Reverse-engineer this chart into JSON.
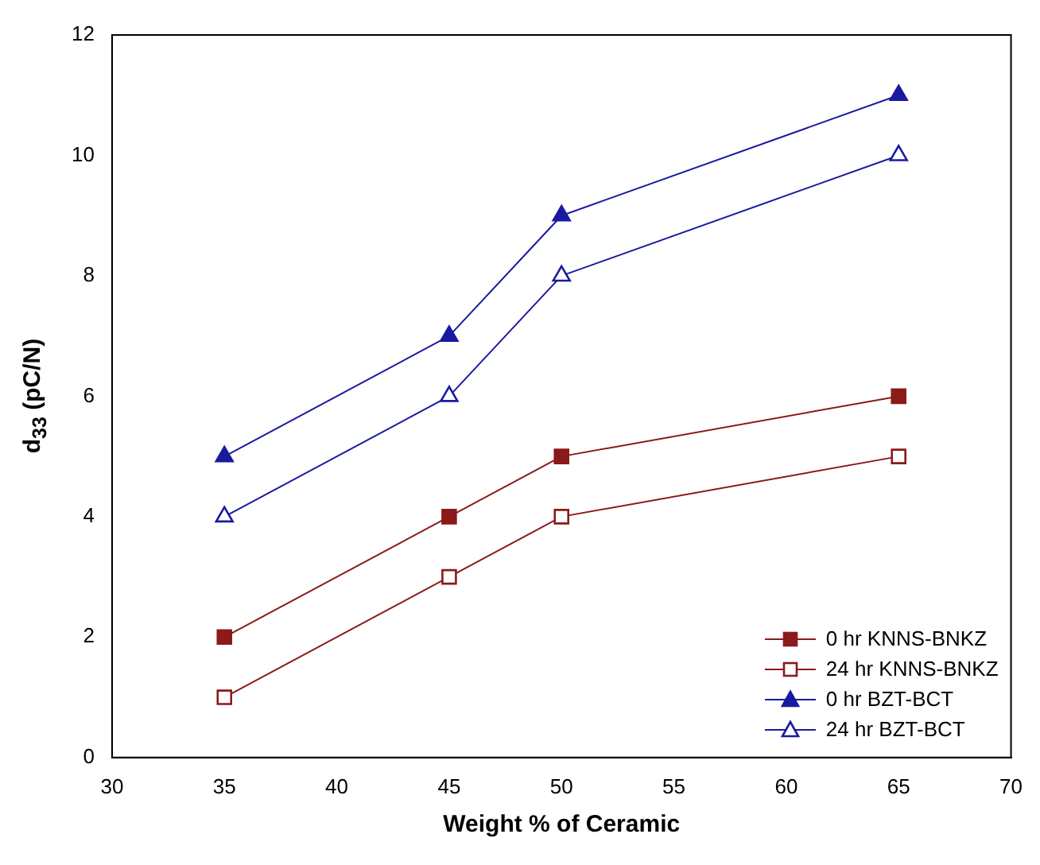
{
  "chart_data": {
    "type": "line",
    "xlabel": "Weight % of Ceramic",
    "ylabel": "d$_{33}$ (pC/N)",
    "x": [
      35,
      45,
      50,
      65
    ],
    "series": [
      {
        "name": "0 hr KNNS-BNKZ",
        "color": "#8b1a1a",
        "marker": "square",
        "values": [
          2,
          4,
          5,
          6
        ]
      },
      {
        "name": "24 hr KNNS-BNKZ",
        "color": "#8b1a1a",
        "marker": "square",
        "values": [
          1,
          3,
          4,
          5
        ]
      },
      {
        "name": "0 hr BZT-BCT",
        "color": "#1a1aa0",
        "marker": "triangle",
        "values": [
          5,
          7,
          9,
          11
        ]
      },
      {
        "name": "24 hr BZT-BCT",
        "color": "#1a1aa0",
        "marker": "triangle",
        "values": [
          4,
          6,
          8,
          10
        ]
      }
    ],
    "xlim": [
      30,
      70
    ],
    "xticks": [
      30,
      35,
      40,
      45,
      50,
      55,
      60,
      65,
      70
    ],
    "ylim": [
      0,
      12
    ],
    "yticks": [
      0,
      2,
      4,
      6,
      8,
      10,
      12
    ],
    "grid": false,
    "legend": "bottom right",
    "line_style": "solid"
  }
}
